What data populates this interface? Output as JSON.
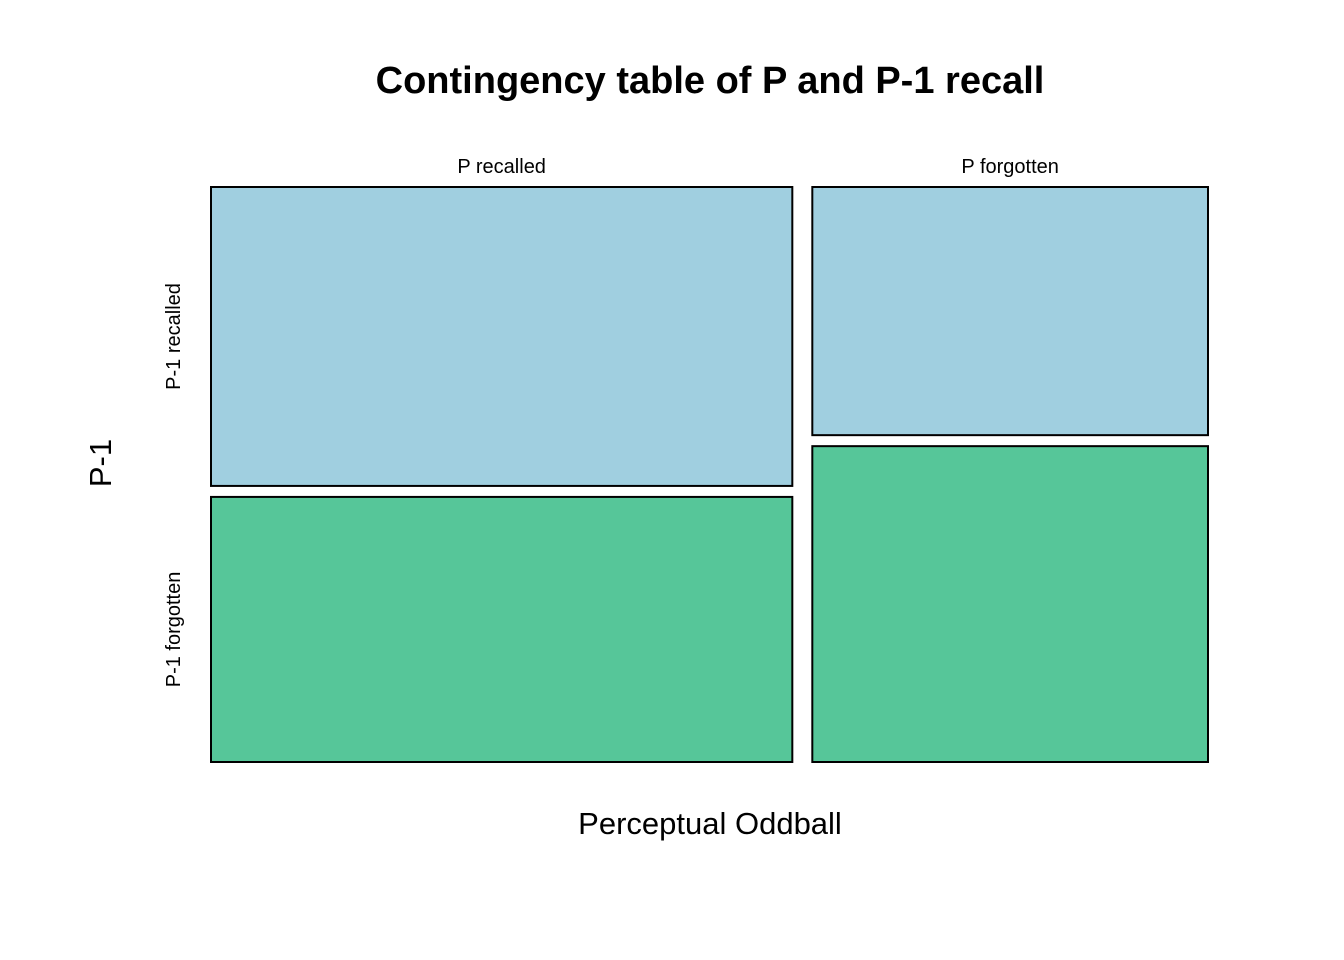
{
  "chart_data": {
    "type": "mosaic",
    "title": "Contingency table of P and P-1 recall",
    "xlabel": "Perceptual Oddball",
    "ylabel": "P-1",
    "x_categories": [
      "P recalled",
      "P forgotten"
    ],
    "y_categories": [
      "P-1 recalled",
      "P-1 forgotten"
    ],
    "x_proportions": [
      0.595,
      0.405
    ],
    "conditional_proportions": [
      {
        "x": "P recalled",
        "values": [
          0.53,
          0.47
        ]
      },
      {
        "x": "P forgotten",
        "values": [
          0.44,
          0.56
        ]
      }
    ],
    "colors": {
      "P-1 recalled": "#a0cfe0",
      "P-1 forgotten": "#56c699"
    }
  }
}
